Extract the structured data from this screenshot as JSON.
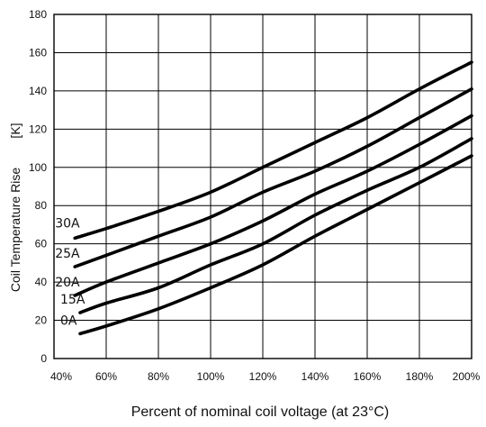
{
  "chart_data": {
    "type": "line",
    "title": "",
    "xlabel": "Percent of nominal coil voltage (at 23°C)",
    "ylabel": "Coil Temperature Rise",
    "yunit": "[K]",
    "xlim": [
      40,
      200
    ],
    "ylim": [
      0,
      180
    ],
    "xticks": [
      40,
      60,
      80,
      100,
      120,
      140,
      160,
      180,
      200
    ],
    "xtick_labels": [
      "40%",
      "60%",
      "80%",
      "100%",
      "120%",
      "140%",
      "160%",
      "180%",
      "200%"
    ],
    "yticks": [
      0,
      20,
      40,
      60,
      80,
      100,
      120,
      140,
      160,
      180
    ],
    "ytick_labels": [
      "0",
      "20",
      "40",
      "60",
      "80",
      "100",
      "120",
      "140",
      "160",
      "180"
    ],
    "grid": true,
    "line_color": "#000000",
    "series": [
      {
        "name": "30A",
        "x": [
          48,
          60,
          80,
          100,
          120,
          140,
          160,
          180,
          200
        ],
        "y": [
          63,
          68,
          77,
          87,
          100,
          113,
          126,
          141,
          155
        ]
      },
      {
        "name": "25A",
        "x": [
          48,
          60,
          80,
          100,
          120,
          140,
          160,
          180,
          200
        ],
        "y": [
          48,
          54,
          64,
          74,
          87,
          98,
          111,
          126,
          141
        ]
      },
      {
        "name": "20A",
        "x": [
          48,
          60,
          80,
          100,
          120,
          140,
          160,
          180,
          200
        ],
        "y": [
          33,
          40,
          50,
          60,
          72,
          86,
          98,
          112,
          127
        ]
      },
      {
        "name": "15A",
        "x": [
          50,
          60,
          80,
          100,
          120,
          140,
          160,
          180,
          200
        ],
        "y": [
          24,
          29,
          37,
          49,
          60,
          75,
          88,
          100,
          115
        ]
      },
      {
        "name": "0A",
        "x": [
          50,
          60,
          80,
          100,
          120,
          140,
          160,
          180,
          200
        ],
        "y": [
          13,
          17,
          26,
          37,
          49,
          64,
          78,
          92,
          106
        ]
      }
    ]
  }
}
